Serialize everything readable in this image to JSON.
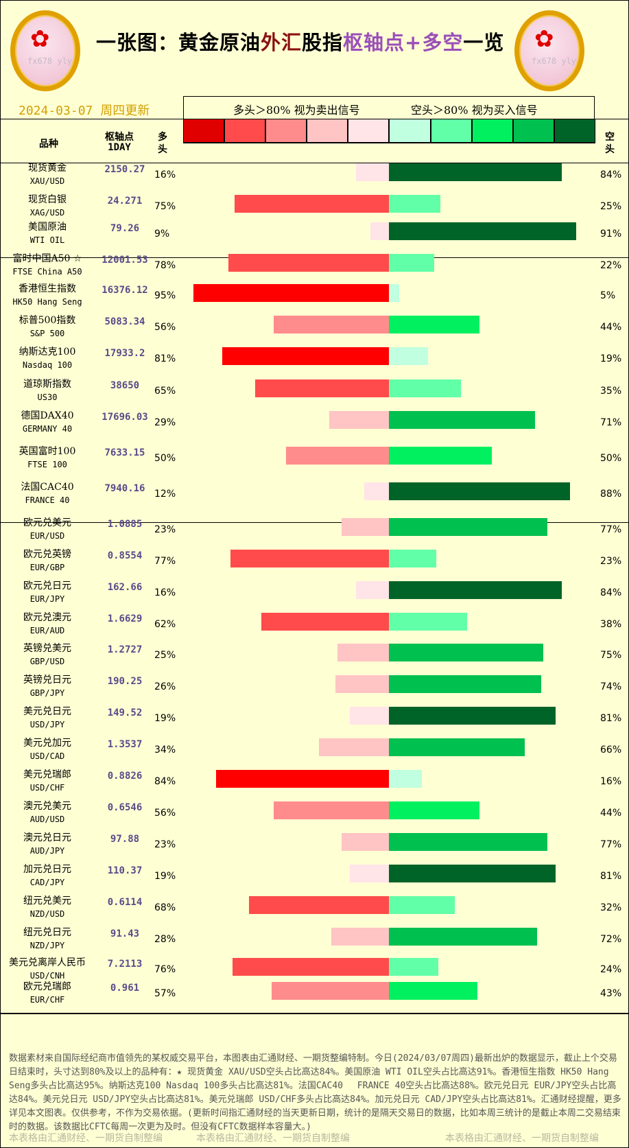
{
  "title": {
    "part1": "一张图：黄金原油",
    "part2": "外汇",
    "part3": "股指",
    "part4": "枢轴点+多空",
    "part5": "一览"
  },
  "logo_text": "fx678 yly",
  "date": "2024-03-07  周四更新",
  "legend": {
    "long_signal": "多头＞80% 视为卖出信号",
    "short_signal": "空头＞80% 视为买入信号"
  },
  "colors": {
    "long": [
      "#e00000",
      "#ff4b4b",
      "#ff8c8c",
      "#ffc4c4",
      "#ffe4e8"
    ],
    "short": [
      "#c0ffe0",
      "#60ffa8",
      "#00f060",
      "#00c050",
      "#006428"
    ],
    "long_max": "#ff0000"
  },
  "headers": {
    "symbol": "品种",
    "pivot": "枢轴点",
    "pivot_sub": "1DAY",
    "long": "多头",
    "short": "空头"
  },
  "rows": [
    {
      "cn": "现货黄金",
      "en": "XAU/USD",
      "pivot": "2150.27",
      "long": 16,
      "short": 84
    },
    {
      "cn": "现货白银",
      "en": "XAG/USD",
      "pivot": "24.271",
      "long": 75,
      "short": 25
    },
    {
      "cn": "美国原油",
      "en": "WTI OIL",
      "pivot": "79.26",
      "long": 9,
      "short": 91
    },
    {
      "cn": "富时中国A50 ☆",
      "en": "FTSE China A50",
      "pivot": "12001.53",
      "long": 78,
      "short": 22
    },
    {
      "cn": "香港恒生指数",
      "en": "HK50 Hang Seng",
      "pivot": "16376.12",
      "long": 95,
      "short": 5
    },
    {
      "cn": "标普500指数",
      "en": "S&P 500",
      "pivot": "5083.34",
      "long": 56,
      "short": 44
    },
    {
      "cn": "纳斯达克100",
      "en": "Nasdaq 100",
      "pivot": "17933.2",
      "long": 81,
      "short": 19
    },
    {
      "cn": "道琼斯指数",
      "en": "US30",
      "pivot": "38650",
      "long": 65,
      "short": 35
    },
    {
      "cn": "德国DAX40",
      "en": "GERMANY 40",
      "pivot": "17696.03",
      "long": 29,
      "short": 71
    },
    {
      "cn": "英国富时100",
      "en": "FTSE 100",
      "pivot": "7633.15",
      "long": 50,
      "short": 50
    },
    {
      "cn": "法国CAC40",
      "en": "FRANCE 40",
      "pivot": "7940.16",
      "long": 12,
      "short": 88
    },
    {
      "cn": "欧元兑美元",
      "en": "EUR/USD",
      "pivot": "1.0885",
      "long": 23,
      "short": 77
    },
    {
      "cn": "欧元兑英镑",
      "en": "EUR/GBP",
      "pivot": "0.8554",
      "long": 77,
      "short": 23
    },
    {
      "cn": "欧元兑日元",
      "en": "EUR/JPY",
      "pivot": "162.66",
      "long": 16,
      "short": 84
    },
    {
      "cn": "欧元兑澳元",
      "en": "EUR/AUD",
      "pivot": "1.6629",
      "long": 62,
      "short": 38
    },
    {
      "cn": "英镑兑美元",
      "en": "GBP/USD",
      "pivot": "1.2727",
      "long": 25,
      "short": 75
    },
    {
      "cn": "英镑兑日元",
      "en": "GBP/JPY",
      "pivot": "190.25",
      "long": 26,
      "short": 74
    },
    {
      "cn": "美元兑日元",
      "en": "USD/JPY",
      "pivot": "149.52",
      "long": 19,
      "short": 81
    },
    {
      "cn": "美元兑加元",
      "en": "USD/CAD",
      "pivot": "1.3537",
      "long": 34,
      "short": 66
    },
    {
      "cn": "美元兑瑞郎",
      "en": "USD/CHF",
      "pivot": "0.8826",
      "long": 84,
      "short": 16
    },
    {
      "cn": "澳元兑美元",
      "en": "AUD/USD",
      "pivot": "0.6546",
      "long": 56,
      "short": 44
    },
    {
      "cn": "澳元兑日元",
      "en": "AUD/JPY",
      "pivot": "97.88",
      "long": 23,
      "short": 77
    },
    {
      "cn": "加元兑日元",
      "en": "CAD/JPY",
      "pivot": "110.37",
      "long": 19,
      "short": 81
    },
    {
      "cn": "纽元兑美元",
      "en": "NZD/USD",
      "pivot": "0.6114",
      "long": 68,
      "short": 32
    },
    {
      "cn": "纽元兑日元",
      "en": "NZD/JPY",
      "pivot": "91.43",
      "long": 28,
      "short": 72
    },
    {
      "cn": "美元兑离岸人民币",
      "en": "USD/CNH",
      "pivot": "7.2113",
      "long": 76,
      "short": 24
    },
    {
      "cn": "欧元兑瑞郎",
      "en": "EUR/CHF",
      "pivot": "0.961",
      "long": 57,
      "short": 43
    }
  ],
  "footer": {
    "text": "数据素材来自国际经纪商市值领先的某权威交易平台，本图表由汇通财经、一期货整编特制。今日(2024/03/07周四)最新出炉的数据显示，截止上个交易日结束时，头寸达到80%及以上的品种有：★ 现货黄金 XAU/USD空头占比高达84%。美国原油 WTI OIL空头占比高达91%。香港恒生指数 HK50 Hang Seng多头占比高达95%。纳斯达克100 Nasdaq 100多头占比高达81%。法国CAC40　 FRANCE 40空头占比高达88%。欧元兑日元 EUR/JPY空头占比高达84%。美元兑日元 USD/JPY空头占比高达81%。美元兑瑞郎 USD/CHF多头占比高达84%。加元兑日元 CAD/JPY空头占比高达81%。汇通财经提醒，更多详见本文图表。仅供参考，不作为交易依据。(更新时间指汇通财经的当天更新日期，统计的是隔天交易日的数据，比如本周三统计的是截止本周二交易结束时的数据。该数据比CFTC每周一次更为及时。但没有CFTC数据样本容量大。)",
    "credit": "本表格由汇通财经、一期货自制整编"
  }
}
